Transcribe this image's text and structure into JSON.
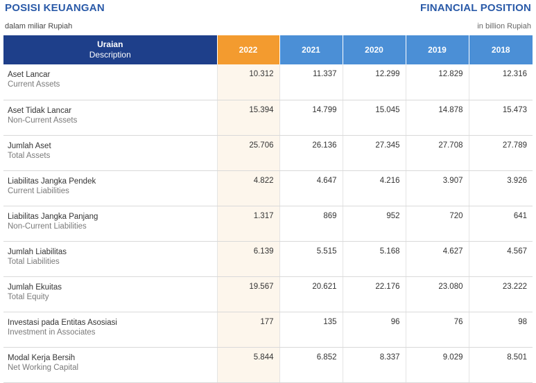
{
  "header": {
    "title_id": "POSISI KEUANGAN",
    "title_en": "FINANCIAL POSITION",
    "unit_id": "dalam miliar Rupiah",
    "unit_en": "in billion Rupiah"
  },
  "table": {
    "desc_header": "Uraian",
    "desc_header_en": "Description",
    "years": [
      "2022",
      "2021",
      "2020",
      "2019",
      "2018"
    ],
    "rows": [
      {
        "label": "Aset Lancar",
        "label_en": "Current Assets",
        "values": [
          "10.312",
          "11.337",
          "12.299",
          "12.829",
          "12.316"
        ]
      },
      {
        "label": "Aset Tidak Lancar",
        "label_en": "Non-Current Assets",
        "values": [
          "15.394",
          "14.799",
          "15.045",
          "14.878",
          "15.473"
        ]
      },
      {
        "label": "Jumlah Aset",
        "label_en": "Total Assets",
        "values": [
          "25.706",
          "26.136",
          "27.345",
          "27.708",
          "27.789"
        ]
      },
      {
        "label": "Liabilitas Jangka Pendek",
        "label_en": "Current Liabilities",
        "values": [
          "4.822",
          "4.647",
          "4.216",
          "3.907",
          "3.926"
        ]
      },
      {
        "label": "Liabilitas Jangka Panjang",
        "label_en": "Non-Current Liabilities",
        "values": [
          "1.317",
          "869",
          "952",
          "720",
          "641"
        ]
      },
      {
        "label": "Jumlah Liabilitas",
        "label_en": "Total Liabilities",
        "values": [
          "6.139",
          "5.515",
          "5.168",
          "4.627",
          "4.567"
        ]
      },
      {
        "label": "Jumlah Ekuitas",
        "label_en": "Total Equity",
        "values": [
          "19.567",
          "20.621",
          "22.176",
          "23.080",
          "23.222"
        ]
      },
      {
        "label": "Investasi pada Entitas Asosiasi",
        "label_en": "Investment in Associates",
        "values": [
          "177",
          "135",
          "96",
          "76",
          "98"
        ]
      },
      {
        "label": "Modal Kerja Bersih",
        "label_en": "Net Working Capital",
        "values": [
          "5.844",
          "6.852",
          "8.337",
          "9.029",
          "8.501"
        ]
      }
    ]
  },
  "colors": {
    "title": "#2a5aa8",
    "desc_header_bg": "#1e3f8a",
    "highlight_year_bg": "#f39b2f",
    "year_header_bg": "#4b8fd6",
    "highlight_cell_bg": "#fdf6ec"
  }
}
